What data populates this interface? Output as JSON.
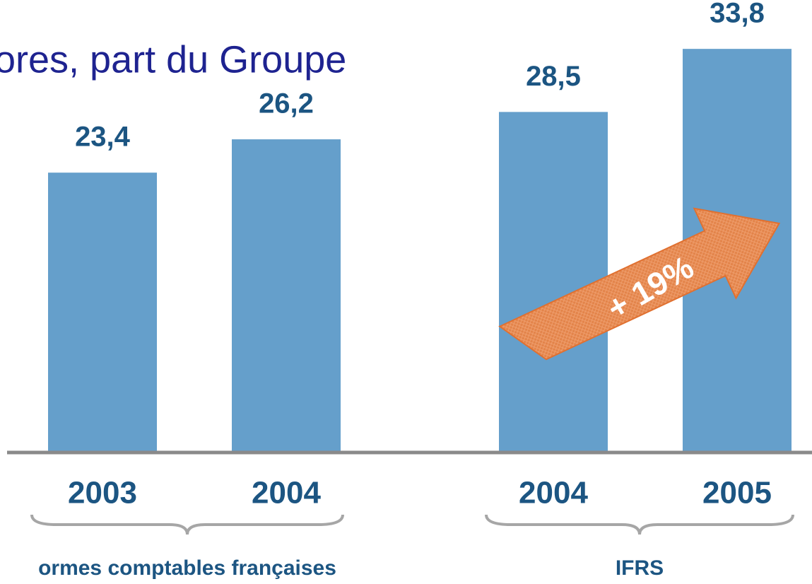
{
  "chart_data": {
    "type": "bar",
    "title": "ores, part du Groupe",
    "categories": [
      "2003",
      "2004",
      "2004",
      "2005"
    ],
    "values": [
      23.4,
      26.2,
      28.5,
      33.8
    ],
    "value_labels": [
      "23,4",
      "26,2",
      "28,5",
      "33,8"
    ],
    "color": "#659fcb",
    "groups": [
      "ormes comptables françaises",
      "IFRS"
    ],
    "annotation": "+ 19%"
  }
}
